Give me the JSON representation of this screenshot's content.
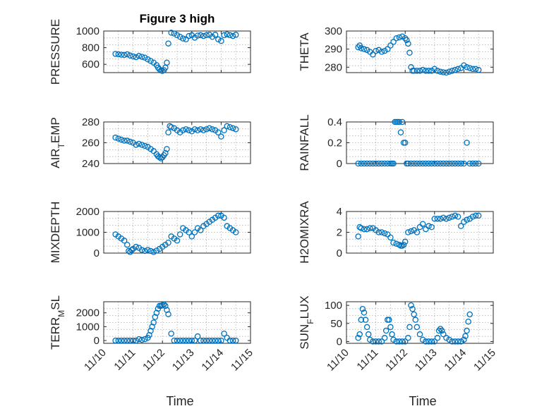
{
  "colors": {
    "series": "#0072BD",
    "axis": "#262626",
    "grid": "#b0b0b0"
  },
  "chart_data": [
    {
      "type": "scatter",
      "title": "Figure 3 high",
      "ylabel": "PRESSURE",
      "ylabel_sub": "",
      "ylim": [
        500,
        1000
      ],
      "yticks": [
        600,
        800,
        1000
      ],
      "xlim": [
        0,
        5
      ],
      "grid": true,
      "show_xticks": false,
      "xlabel": "",
      "x": [
        0.4,
        0.5,
        0.6,
        0.7,
        0.8,
        0.9,
        1.0,
        1.1,
        1.2,
        1.3,
        1.4,
        1.5,
        1.6,
        1.7,
        1.8,
        1.85,
        1.9,
        1.95,
        2.0,
        2.05,
        2.1,
        2.15,
        2.2,
        2.3,
        2.4,
        2.5,
        2.6,
        2.7,
        2.8,
        2.9,
        3.0,
        3.1,
        3.2,
        3.3,
        3.4,
        3.5,
        3.6,
        3.7,
        3.8,
        3.9,
        4.0,
        4.1,
        4.2,
        4.3,
        4.4,
        4.5
      ],
      "y": [
        725,
        720,
        715,
        712,
        720,
        705,
        695,
        685,
        700,
        690,
        680,
        660,
        640,
        620,
        590,
        560,
        540,
        525,
        520,
        530,
        560,
        620,
        850,
        980,
        970,
        950,
        930,
        910,
        900,
        940,
        950,
        920,
        945,
        950,
        940,
        950,
        955,
        930,
        955,
        900,
        880,
        950,
        960,
        950,
        940,
        955
      ]
    },
    {
      "type": "scatter",
      "title": "",
      "ylabel": "THETA",
      "ylabel_sub": "",
      "ylim": [
        277,
        300
      ],
      "yticks": [
        280,
        290,
        300
      ],
      "xlim": [
        0,
        5
      ],
      "grid": true,
      "show_xticks": false,
      "xlabel": "",
      "x": [
        0.4,
        0.45,
        0.5,
        0.6,
        0.7,
        0.8,
        0.9,
        1.0,
        1.1,
        1.2,
        1.3,
        1.4,
        1.5,
        1.6,
        1.7,
        1.8,
        1.9,
        2.0,
        2.05,
        2.1,
        2.15,
        2.2,
        2.25,
        2.3,
        2.4,
        2.5,
        2.6,
        2.7,
        2.8,
        2.9,
        3.0,
        3.1,
        3.2,
        3.3,
        3.4,
        3.5,
        3.6,
        3.7,
        3.8,
        3.9,
        4.0,
        4.1,
        4.2,
        4.3,
        4.4,
        4.5
      ],
      "y": [
        291,
        292,
        290.5,
        290,
        289.5,
        288.5,
        287,
        289,
        289.5,
        288.5,
        289,
        290,
        292,
        294,
        296,
        296.5,
        297,
        296,
        295,
        293,
        288,
        280,
        278,
        278,
        278,
        278,
        278.5,
        278,
        278,
        278,
        279,
        278,
        277.5,
        277.2,
        277,
        277.5,
        278,
        278.5,
        279,
        279.5,
        281,
        280,
        279.5,
        279,
        279,
        278.5
      ]
    },
    {
      "type": "scatter",
      "title": "",
      "ylabel": "AIR",
      "ylabel_sub": "T",
      "ylabel_tail": "EMP",
      "ylim": [
        240,
        280
      ],
      "yticks": [
        240,
        260,
        280
      ],
      "xlim": [
        0,
        5
      ],
      "grid": true,
      "show_xticks": false,
      "xlabel": "",
      "x": [
        0.4,
        0.5,
        0.6,
        0.7,
        0.8,
        0.9,
        1.0,
        1.1,
        1.2,
        1.3,
        1.4,
        1.5,
        1.6,
        1.7,
        1.8,
        1.85,
        1.9,
        1.95,
        2.0,
        2.05,
        2.1,
        2.15,
        2.2,
        2.25,
        2.3,
        2.4,
        2.5,
        2.6,
        2.7,
        2.8,
        2.9,
        3.0,
        3.1,
        3.2,
        3.3,
        3.4,
        3.5,
        3.6,
        3.7,
        3.8,
        3.9,
        4.0,
        4.1,
        4.2,
        4.3,
        4.4,
        4.5
      ],
      "y": [
        265,
        264,
        263,
        262,
        262,
        261,
        260,
        258,
        259,
        258,
        257,
        256,
        254,
        252,
        249,
        247,
        246,
        245,
        246,
        248,
        250,
        254,
        270,
        276,
        275,
        274,
        272,
        270,
        272,
        273,
        272,
        271,
        273,
        272,
        273,
        272,
        273,
        274,
        273,
        272,
        270,
        266,
        272,
        276,
        275,
        274,
        273
      ]
    },
    {
      "type": "scatter",
      "title": "",
      "ylabel": "RAINFALL",
      "ylabel_sub": "",
      "ylim": [
        0,
        0.4
      ],
      "yticks": [
        0,
        0.2,
        0.4
      ],
      "xlim": [
        0,
        5
      ],
      "grid": true,
      "show_xticks": false,
      "xlabel": "",
      "x": [
        0.4,
        0.5,
        0.6,
        0.7,
        0.8,
        0.9,
        1.0,
        1.1,
        1.2,
        1.3,
        1.4,
        1.5,
        1.55,
        1.6,
        1.65,
        1.7,
        1.75,
        1.8,
        1.85,
        1.9,
        1.95,
        2.0,
        2.05,
        2.1,
        2.2,
        2.3,
        2.4,
        2.5,
        2.6,
        2.7,
        2.8,
        2.9,
        3.0,
        3.1,
        3.2,
        3.3,
        3.4,
        3.5,
        3.6,
        3.7,
        3.8,
        3.9,
        4.0,
        4.1,
        4.2,
        4.3,
        4.4,
        4.5
      ],
      "y": [
        0,
        0,
        0,
        0,
        0,
        0,
        0,
        0,
        0,
        0,
        0,
        0,
        0,
        0,
        0.4,
        0.4,
        0.4,
        0.4,
        0.3,
        0.4,
        0.2,
        0.2,
        0,
        0,
        0,
        0,
        0,
        0,
        0,
        0,
        0,
        0,
        0,
        0,
        0,
        0,
        0,
        0,
        0,
        0,
        0,
        0,
        0,
        0.2,
        0,
        0,
        0,
        0
      ]
    },
    {
      "type": "scatter",
      "title": "",
      "ylabel": "MIXDEPTH",
      "ylabel_sub": "",
      "ylim": [
        0,
        2000
      ],
      "yticks": [
        0,
        1000,
        2000
      ],
      "xlim": [
        0,
        5
      ],
      "grid": true,
      "show_xticks": false,
      "xlabel": "",
      "x": [
        0.4,
        0.5,
        0.6,
        0.7,
        0.8,
        0.85,
        0.9,
        0.95,
        1.0,
        1.1,
        1.2,
        1.3,
        1.4,
        1.5,
        1.6,
        1.7,
        1.8,
        1.9,
        2.0,
        2.1,
        2.2,
        2.3,
        2.4,
        2.5,
        2.6,
        2.7,
        2.8,
        2.9,
        3.0,
        3.1,
        3.2,
        3.3,
        3.4,
        3.5,
        3.6,
        3.7,
        3.8,
        3.9,
        4.0,
        4.1,
        4.2,
        4.3,
        4.4,
        4.5
      ],
      "y": [
        900,
        800,
        700,
        600,
        400,
        100,
        50,
        150,
        200,
        300,
        250,
        150,
        100,
        150,
        100,
        50,
        120,
        200,
        300,
        400,
        500,
        800,
        700,
        600,
        900,
        1200,
        1100,
        1000,
        800,
        1000,
        1200,
        1100,
        1300,
        1400,
        1500,
        1600,
        1700,
        1800,
        1800,
        1700,
        1300,
        1200,
        1100,
        1000
      ]
    },
    {
      "type": "scatter",
      "title": "",
      "ylabel": "H2OMIXRA",
      "ylabel_sub": "",
      "ylim": [
        0,
        4
      ],
      "yticks": [
        0,
        2,
        4
      ],
      "xlim": [
        0,
        5
      ],
      "grid": true,
      "show_xticks": false,
      "xlabel": "",
      "x": [
        0.4,
        0.45,
        0.5,
        0.6,
        0.7,
        0.8,
        0.9,
        1.0,
        1.1,
        1.2,
        1.3,
        1.4,
        1.5,
        1.6,
        1.7,
        1.8,
        1.85,
        1.9,
        1.95,
        2.0,
        2.1,
        2.2,
        2.3,
        2.4,
        2.5,
        2.6,
        2.7,
        2.8,
        2.9,
        3.0,
        3.1,
        3.2,
        3.3,
        3.4,
        3.5,
        3.6,
        3.7,
        3.8,
        3.9,
        4.0,
        4.1,
        4.2,
        4.3,
        4.4,
        4.5
      ],
      "y": [
        1.6,
        2.5,
        2.4,
        2.3,
        2.3,
        2.4,
        2.4,
        2.2,
        2.0,
        2.0,
        1.9,
        1.8,
        1.5,
        1.0,
        0.9,
        0.8,
        0.7,
        0.7,
        0.8,
        1.1,
        2.0,
        2.1,
        2.2,
        2.0,
        2.5,
        2.8,
        2.3,
        2.6,
        2.5,
        3.3,
        3.3,
        3.3,
        3.4,
        3.3,
        3.4,
        3.5,
        3.6,
        3.5,
        2.6,
        3.0,
        3.2,
        3.3,
        3.5,
        3.6,
        3.6
      ]
    },
    {
      "type": "scatter",
      "title": "",
      "ylabel": "TERR",
      "ylabel_sub": "M",
      "ylabel_tail": "SL",
      "ylim": [
        -200,
        2800
      ],
      "yticks": [
        0,
        1000,
        2000
      ],
      "xlim": [
        0,
        5
      ],
      "grid": true,
      "show_xticks": true,
      "xticklabels": [
        "11/10",
        "11/11",
        "11/12",
        "11/13",
        "11/14",
        "11/15"
      ],
      "xlabel": "Time",
      "x": [
        0.4,
        0.5,
        0.6,
        0.7,
        0.8,
        0.9,
        1.0,
        1.1,
        1.2,
        1.3,
        1.4,
        1.5,
        1.55,
        1.6,
        1.65,
        1.7,
        1.75,
        1.8,
        1.85,
        1.9,
        1.95,
        2.0,
        2.05,
        2.1,
        2.15,
        2.2,
        2.3,
        2.4,
        2.5,
        2.6,
        2.7,
        2.8,
        2.9,
        3.0,
        3.1,
        3.2,
        3.3,
        3.4,
        3.5,
        3.6,
        3.7,
        3.8,
        3.9,
        4.0,
        4.1,
        4.2,
        4.3,
        4.4,
        4.5
      ],
      "y": [
        0,
        0,
        0,
        0,
        0,
        0,
        0,
        0,
        100,
        50,
        100,
        200,
        400,
        700,
        1000,
        1300,
        1700,
        2000,
        2300,
        2500,
        2500,
        2550,
        2600,
        2500,
        2200,
        1900,
        500,
        0,
        0,
        0,
        0,
        0,
        0,
        0,
        0,
        300,
        0,
        0,
        0,
        0,
        0,
        0,
        0,
        0,
        500,
        200,
        0,
        0,
        0
      ]
    },
    {
      "type": "scatter",
      "title": "",
      "ylabel": "SUN",
      "ylabel_sub": "F",
      "ylabel_tail": "LUX",
      "ylim": [
        -5,
        110
      ],
      "yticks": [
        0,
        50,
        100
      ],
      "xlim": [
        0,
        5
      ],
      "grid": true,
      "show_xticks": true,
      "xticklabels": [
        "11/10",
        "11/11",
        "11/12",
        "11/13",
        "11/14",
        "11/15"
      ],
      "xlabel": "Time",
      "x": [
        0.4,
        0.45,
        0.5,
        0.55,
        0.6,
        0.65,
        0.7,
        0.75,
        0.8,
        0.9,
        1.0,
        1.1,
        1.2,
        1.3,
        1.35,
        1.4,
        1.45,
        1.5,
        1.55,
        1.6,
        1.7,
        1.8,
        1.9,
        2.0,
        2.1,
        2.15,
        2.2,
        2.25,
        2.3,
        2.35,
        2.4,
        2.5,
        2.6,
        2.7,
        2.8,
        2.9,
        3.0,
        3.1,
        3.15,
        3.2,
        3.25,
        3.3,
        3.4,
        3.5,
        3.6,
        3.7,
        3.8,
        3.9,
        4.0,
        4.05,
        4.1,
        4.15,
        4.2
      ],
      "y": [
        10,
        20,
        60,
        90,
        80,
        60,
        40,
        20,
        5,
        0,
        0,
        0,
        0,
        10,
        30,
        60,
        60,
        40,
        20,
        5,
        0,
        0,
        0,
        0,
        10,
        40,
        100,
        90,
        75,
        60,
        40,
        20,
        5,
        0,
        0,
        0,
        0,
        10,
        30,
        35,
        30,
        20,
        10,
        5,
        0,
        0,
        0,
        0,
        5,
        15,
        30,
        55,
        75
      ]
    }
  ]
}
